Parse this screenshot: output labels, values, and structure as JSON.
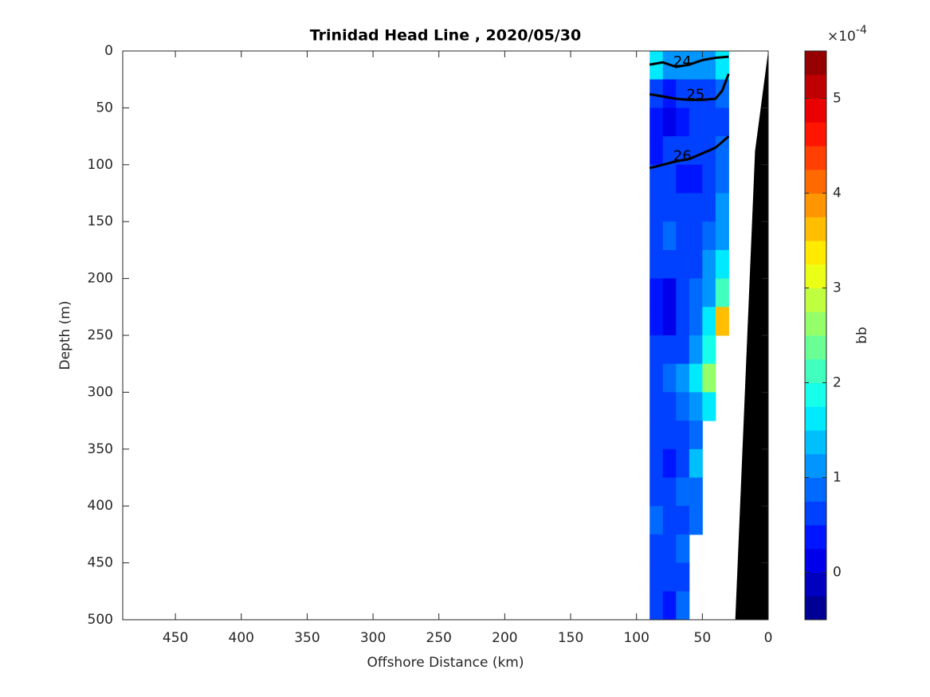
{
  "chart_data": {
    "type": "contourf",
    "title": "Trinidad Head Line , 2020/05/30",
    "xlabel": "Offshore Distance (km)",
    "ylabel": "Depth (m)",
    "xlim": [
      490,
      0
    ],
    "ylim": [
      500,
      0
    ],
    "xticks": [
      450,
      400,
      350,
      300,
      250,
      200,
      150,
      100,
      50,
      0
    ],
    "yticks": [
      0,
      50,
      100,
      150,
      200,
      250,
      300,
      350,
      400,
      450,
      500
    ],
    "x_edges": [
      90,
      80,
      70,
      60,
      50,
      40,
      30
    ],
    "y_edges": [
      0,
      25,
      50,
      75,
      100,
      125,
      150,
      175,
      200,
      225,
      250,
      275,
      300,
      325,
      350,
      375,
      400,
      425,
      450,
      475,
      500
    ],
    "values": [
      [
        1.5,
        1.2,
        1.0,
        1.0,
        1.2,
        1.5
      ],
      [
        0.5,
        0.3,
        0.5,
        0.6,
        0.6,
        0.8
      ],
      [
        0.3,
        0.2,
        0.4,
        0.5,
        0.5,
        0.7
      ],
      [
        0.4,
        0.5,
        0.5,
        0.5,
        0.6,
        0.8
      ],
      [
        0.6,
        0.7,
        0.4,
        0.3,
        0.6,
        0.9
      ],
      [
        0.7,
        0.7,
        0.5,
        0.5,
        0.7,
        1.0
      ],
      [
        0.7,
        0.8,
        0.6,
        0.7,
        0.9,
        1.2
      ],
      [
        0.6,
        0.7,
        0.6,
        0.7,
        1.0,
        1.5
      ],
      [
        0.4,
        0.2,
        0.5,
        0.8,
        1.2,
        2.0
      ],
      [
        0.3,
        0.1,
        0.5,
        0.9,
        1.5,
        3.5
      ],
      [
        0.5,
        0.5,
        0.7,
        1.0,
        1.8,
        null
      ],
      [
        0.6,
        0.8,
        1.0,
        1.5,
        2.5,
        null
      ],
      [
        0.7,
        0.6,
        0.8,
        1.0,
        1.5,
        null
      ],
      [
        0.6,
        0.5,
        0.6,
        0.9,
        null,
        null
      ],
      [
        0.6,
        0.3,
        0.7,
        1.3,
        null,
        null
      ],
      [
        0.7,
        0.6,
        0.8,
        0.9,
        null,
        null
      ],
      [
        0.8,
        0.6,
        0.7,
        0.8,
        null,
        null
      ],
      [
        0.7,
        0.6,
        0.8,
        null,
        null,
        null
      ],
      [
        0.6,
        0.5,
        0.7,
        null,
        null,
        null
      ],
      [
        0.5,
        0.4,
        0.9,
        null,
        null,
        null
      ]
    ],
    "contours": [
      {
        "label": "24",
        "x": [
          90,
          80,
          70,
          60,
          50,
          40,
          30
        ],
        "y": [
          12,
          10,
          14,
          12,
          8,
          6,
          5
        ]
      },
      {
        "label": "25",
        "x": [
          90,
          80,
          70,
          60,
          50,
          40,
          35,
          30
        ],
        "y": [
          38,
          40,
          42,
          43,
          43,
          42,
          35,
          20
        ]
      },
      {
        "label": "26",
        "x": [
          90,
          80,
          70,
          60,
          50,
          40,
          30
        ],
        "y": [
          103,
          100,
          97,
          95,
          90,
          85,
          75
        ]
      }
    ],
    "bathymetry": {
      "x": [
        0,
        10,
        25
      ],
      "y": [
        0,
        88,
        500
      ],
      "color": "#000000"
    },
    "colormap": "jet",
    "levels": 24,
    "clim": [
      -0.5,
      5.5
    ],
    "cticks": [
      0,
      1,
      2,
      3,
      4,
      5
    ],
    "colorbar_label": "bb",
    "colorbar_multiplier": "×10",
    "colorbar_exponent": "-4"
  }
}
